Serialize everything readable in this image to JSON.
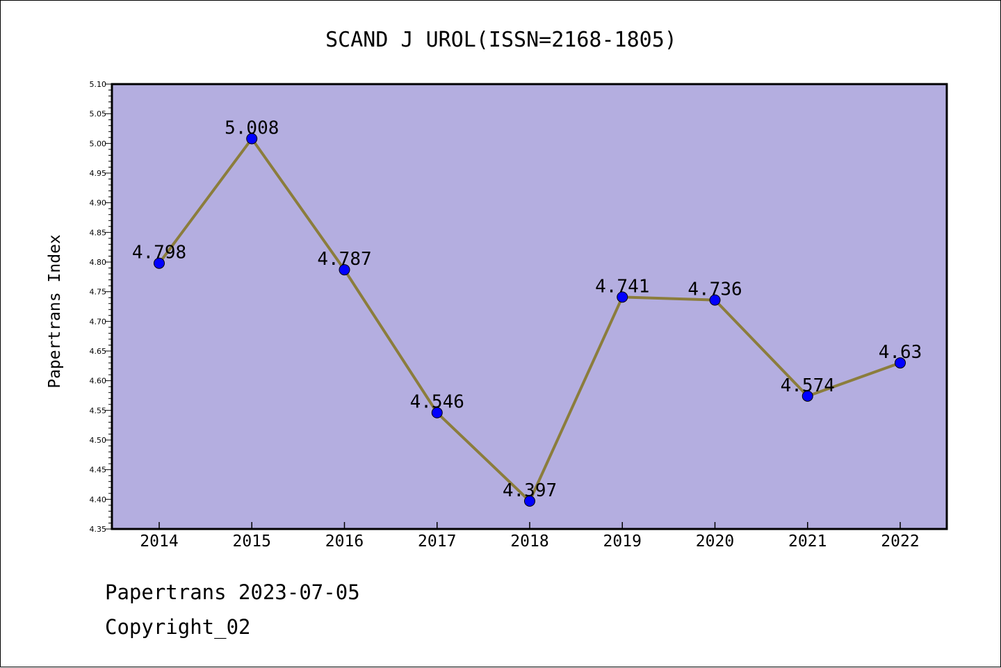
{
  "chart_data": {
    "type": "line",
    "title": "SCAND J UROL(ISSN=2168-1805)",
    "xlabel": "",
    "ylabel": "Papertrans Index",
    "x": [
      "2014",
      "2015",
      "2016",
      "2017",
      "2018",
      "2019",
      "2020",
      "2021",
      "2022"
    ],
    "series": [
      {
        "values": [
          4.798,
          5.008,
          4.787,
          4.546,
          4.397,
          4.741,
          4.736,
          4.574,
          4.63
        ],
        "labels": [
          "4.798",
          "5.008",
          "4.787",
          "4.546",
          "4.397",
          "4.741",
          "4.736",
          "4.574",
          "4.63"
        ]
      }
    ],
    "ylim": [
      4.35,
      5.1
    ],
    "yticks": [
      "4.35",
      "4.40",
      "4.45",
      "4.50",
      "4.55",
      "4.60",
      "4.65",
      "4.70",
      "4.75",
      "4.80",
      "4.85",
      "4.90",
      "4.95",
      "5.00",
      "5.05",
      "5.10"
    ],
    "grid": false,
    "legend": "none",
    "colors": {
      "plot_background": "#b4aee0",
      "line": "#8b7d3c",
      "marker": "#0000ff"
    }
  },
  "footer": {
    "date_line": "Papertrans 2023-07-05",
    "copyright_line": "Copyright_02"
  }
}
